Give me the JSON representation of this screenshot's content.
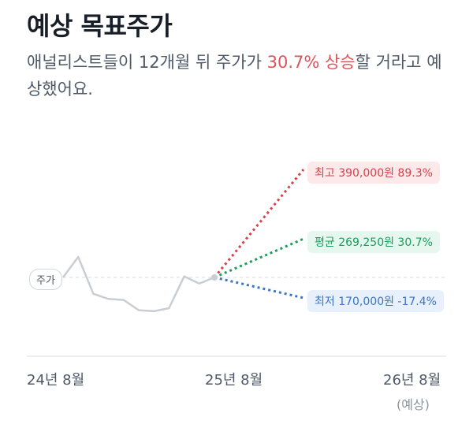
{
  "title": "예상 목표주가",
  "description": {
    "prefix": "애널리스트들이 12개월 뒤 주가가 ",
    "highlight": "30.7% 상승",
    "suffix": "할 거라고 예상했어요."
  },
  "colors": {
    "high": "#d6424b",
    "average": "#1a9e5a",
    "low": "#3a76c4",
    "price_line": "#c9ced4"
  },
  "chart_data": {
    "type": "line",
    "x_labels": [
      "24년 8월",
      "25년 8월",
      "26년 8월"
    ],
    "x_sublabel": "(예상)",
    "current_label": "주가",
    "price_history": [
      0.0,
      1.0,
      -0.8,
      -1.05,
      -1.1,
      -1.6,
      -1.65,
      -1.5,
      0.05,
      -0.3,
      0.0
    ],
    "targets": [
      {
        "key": "high",
        "label": "최고 390,000원 89.3%",
        "price": 390000,
        "change_pct": 89.3
      },
      {
        "key": "average",
        "label": "평균 269,250원 30.7%",
        "price": 269250,
        "change_pct": 30.7
      },
      {
        "key": "low",
        "label": "최저 170,000원 -17.4%",
        "price": 170000,
        "change_pct": -17.4
      }
    ]
  }
}
